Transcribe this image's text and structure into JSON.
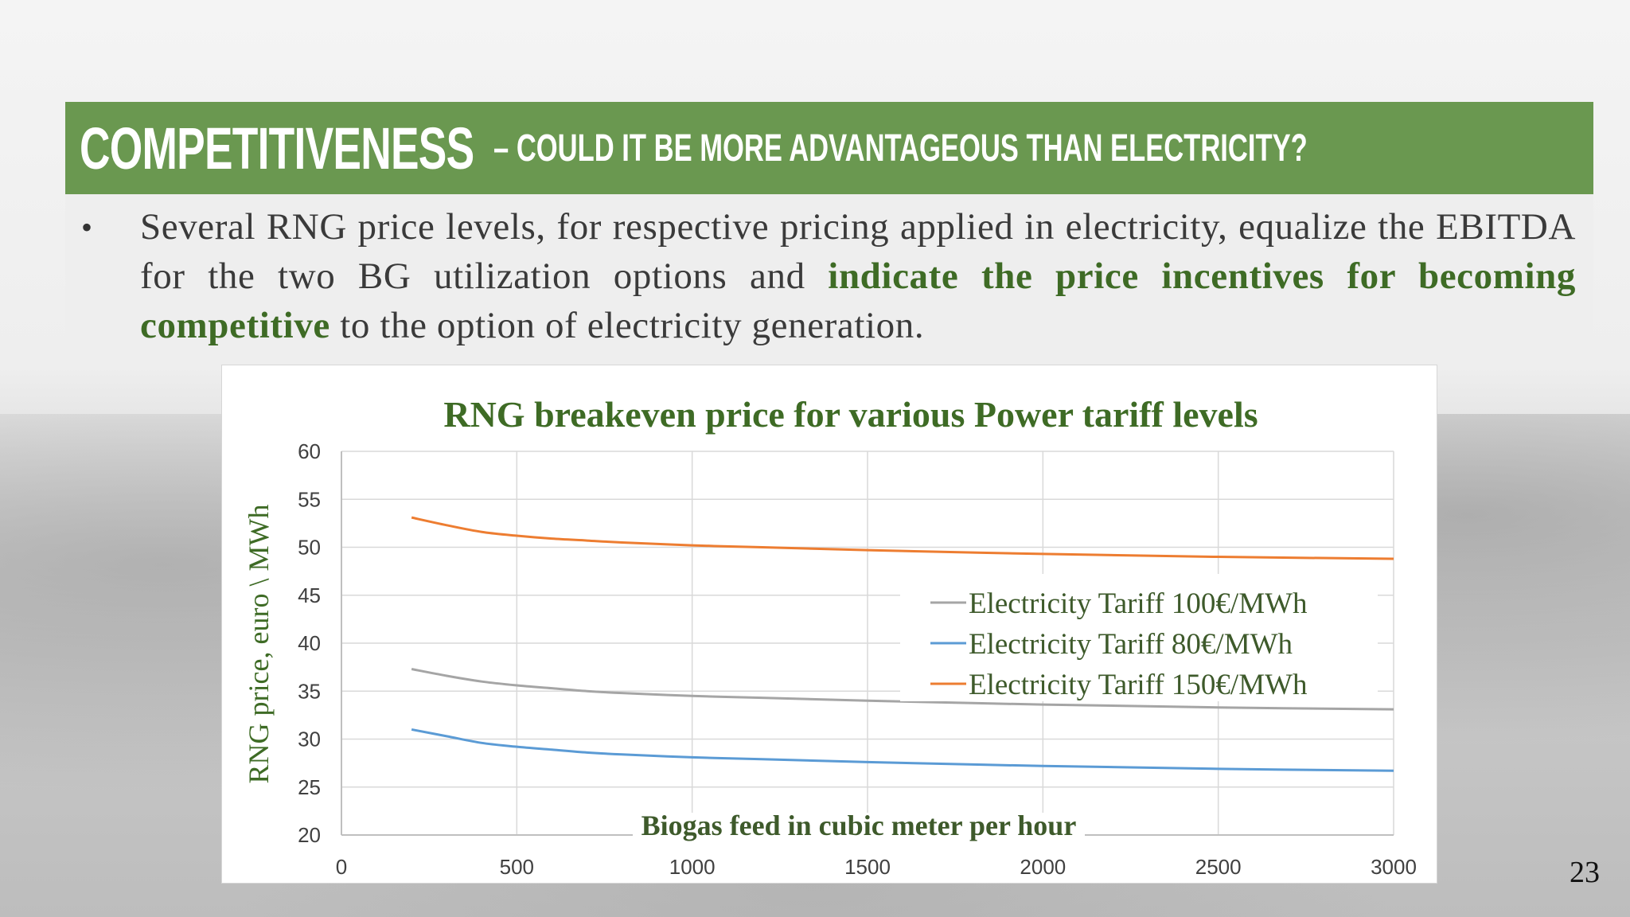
{
  "slide": {
    "title_main": "COMPETITIVENESS",
    "title_sub": " – COULD IT BE MORE ADVANTAGEOUS THAN ELECTRICITY?",
    "bullet_dot": "•",
    "bullet_part1": "Several RNG price levels, for respective pricing applied in electricity, equalize the EBITDA for the two BG utilization options and ",
    "bullet_highlight": "indicate the price incentives for becoming competitive",
    "bullet_part2": " to the option of electricity generation.",
    "page_number": "23"
  },
  "colors": {
    "title_bar": "#6a9850",
    "highlight_text": "#3e6b25",
    "chart_title": "#3e6b25"
  },
  "chart_data": {
    "type": "line",
    "title": "RNG breakeven price for various Power tariff levels",
    "xlabel": "Biogas feed in cubic meter per hour",
    "ylabel": "RNG price, euro \\ MWh",
    "xlim": [
      0,
      3000
    ],
    "ylim": [
      20,
      60
    ],
    "xticks": [
      0,
      500,
      1000,
      1500,
      2000,
      2500,
      3000
    ],
    "yticks": [
      20,
      25,
      30,
      35,
      40,
      45,
      50,
      55,
      60
    ],
    "grid": true,
    "legend_position": "center-right",
    "series": [
      {
        "name": "Electricity Tariff 100€/MWh",
        "color": "#a5a5a5",
        "x": [
          200,
          300,
          400,
          500,
          600,
          700,
          800,
          1000,
          1200,
          1500,
          2000,
          2500,
          3000
        ],
        "y": [
          37.3,
          36.6,
          36.0,
          35.6,
          35.3,
          35.0,
          34.8,
          34.5,
          34.3,
          34.0,
          33.6,
          33.3,
          33.1
        ]
      },
      {
        "name": "Electricity Tariff 80€/MWh",
        "color": "#5b9bd5",
        "x": [
          200,
          300,
          400,
          500,
          600,
          700,
          800,
          1000,
          1200,
          1500,
          2000,
          2500,
          3000
        ],
        "y": [
          31.0,
          30.3,
          29.6,
          29.2,
          28.9,
          28.6,
          28.4,
          28.1,
          27.9,
          27.6,
          27.2,
          26.9,
          26.7
        ]
      },
      {
        "name": "Electricity Tariff 150€/MWh",
        "color": "#ed7d31",
        "x": [
          200,
          300,
          400,
          500,
          600,
          700,
          800,
          1000,
          1200,
          1500,
          2000,
          2500,
          3000
        ],
        "y": [
          53.1,
          52.3,
          51.6,
          51.2,
          50.9,
          50.7,
          50.5,
          50.2,
          50.0,
          49.7,
          49.3,
          49.0,
          48.8
        ]
      }
    ]
  }
}
